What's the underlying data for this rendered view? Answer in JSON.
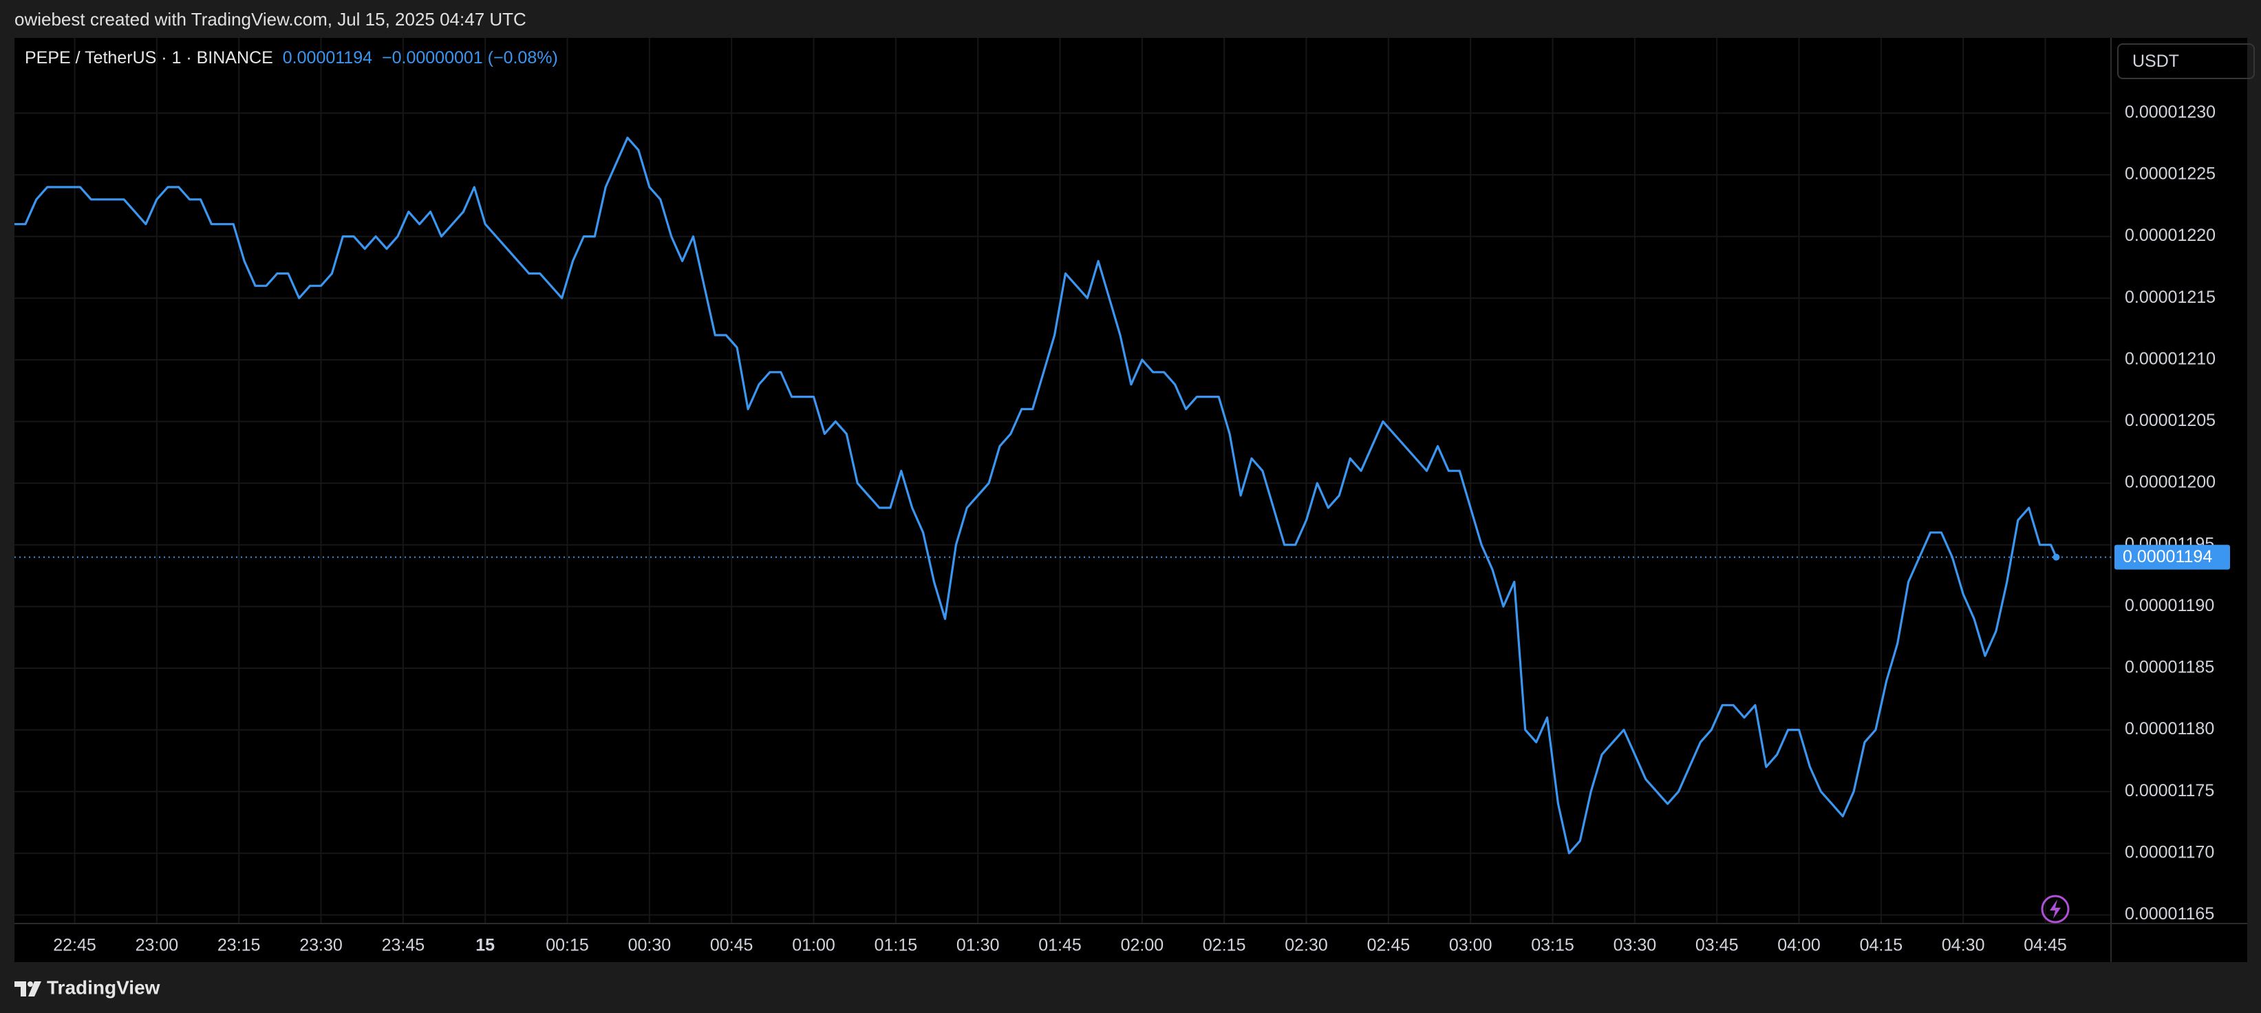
{
  "header": {
    "attribution": "owiebest created with TradingView.com, Jul 15, 2025 04:47 UTC"
  },
  "chart_data": {
    "type": "line",
    "symbol": "PEPE / TetherUS · 1 · BINANCE",
    "last_price": 1.194e-05,
    "change": "−0.00000001 (−0.08%)",
    "currency": "USDT",
    "color": "#3a96f0",
    "grid": true,
    "xlim": [
      "22:34",
      "04:57"
    ],
    "ylim": [
      1.1643e-05,
      1.2361e-05
    ],
    "xticks": [
      "22:45",
      "23:00",
      "23:15",
      "23:30",
      "23:45",
      {
        "value": "00:00",
        "label": "15"
      },
      "00:15",
      "00:30",
      "00:45",
      "01:00",
      "01:15",
      "01:30",
      "01:45",
      "02:00",
      "02:15",
      "02:30",
      "02:45",
      "03:00",
      "03:15",
      "03:30",
      "03:45",
      "04:00",
      "04:15",
      "04:30",
      "04:45"
    ],
    "yticks": [
      1.165e-05,
      {
        "value": 1.17e-05,
        "label": "0.00001170"
      },
      1.175e-05,
      {
        "value": 1.18e-05,
        "label": "0.00001180"
      },
      1.185e-05,
      {
        "value": 1.19e-05,
        "label": "0.00001190"
      },
      1.195e-05,
      {
        "value": 1.2e-05,
        "label": "0.00001200"
      },
      1.205e-05,
      {
        "value": 1.21e-05,
        "label": "0.00001210"
      },
      1.215e-05,
      {
        "value": 1.22e-05,
        "label": "0.00001220"
      },
      1.225e-05,
      {
        "value": 1.23e-05,
        "label": "0.00001230"
      }
    ],
    "x": [
      "22:34",
      "22:36",
      "22:38",
      "22:40",
      "22:42",
      "22:44",
      "22:46",
      "22:48",
      "22:50",
      "22:52",
      "22:54",
      "22:56",
      "22:58",
      "23:00",
      "23:02",
      "23:04",
      "23:06",
      "23:08",
      "23:10",
      "23:12",
      "23:14",
      "23:16",
      "23:18",
      "23:20",
      "23:22",
      "23:24",
      "23:26",
      "23:28",
      "23:30",
      "23:32",
      "23:34",
      "23:36",
      "23:38",
      "23:40",
      "23:42",
      "23:44",
      "23:46",
      "23:48",
      "23:50",
      "23:52",
      "23:54",
      "23:56",
      "23:58",
      "00:00",
      "00:02",
      "00:04",
      "00:06",
      "00:08",
      "00:10",
      "00:12",
      "00:14",
      "00:16",
      "00:18",
      "00:20",
      "00:22",
      "00:24",
      "00:26",
      "00:28",
      "00:30",
      "00:32",
      "00:34",
      "00:36",
      "00:38",
      "00:40",
      "00:42",
      "00:44",
      "00:46",
      "00:48",
      "00:50",
      "00:52",
      "00:54",
      "00:56",
      "00:58",
      "01:00",
      "01:02",
      "01:04",
      "01:06",
      "01:08",
      "01:10",
      "01:12",
      "01:14",
      "01:16",
      "01:18",
      "01:20",
      "01:22",
      "01:24",
      "01:26",
      "01:28",
      "01:30",
      "01:32",
      "01:34",
      "01:36",
      "01:38",
      "01:40",
      "01:42",
      "01:44",
      "01:46",
      "01:48",
      "01:50",
      "01:52",
      "01:54",
      "01:56",
      "01:58",
      "02:00",
      "02:02",
      "02:04",
      "02:06",
      "02:08",
      "02:10",
      "02:12",
      "02:14",
      "02:16",
      "02:18",
      "02:20",
      "02:22",
      "02:24",
      "02:26",
      "02:28",
      "02:30",
      "02:32",
      "02:34",
      "02:36",
      "02:38",
      "02:40",
      "02:42",
      "02:44",
      "02:46",
      "02:48",
      "02:50",
      "02:52",
      "02:54",
      "02:56",
      "02:58",
      "03:00",
      "03:02",
      "03:04",
      "03:06",
      "03:08",
      "03:10",
      "03:12",
      "03:14",
      "03:16",
      "03:18",
      "03:20",
      "03:22",
      "03:24",
      "03:26",
      "03:28",
      "03:30",
      "03:32",
      "03:34",
      "03:36",
      "03:38",
      "03:40",
      "03:42",
      "03:44",
      "03:46",
      "03:48",
      "03:50",
      "03:52",
      "03:54",
      "03:56",
      "03:58",
      "04:00",
      "04:02",
      "04:04",
      "04:06",
      "04:08",
      "04:10",
      "04:12",
      "04:14",
      "04:16",
      "04:18",
      "04:20",
      "04:22",
      "04:24",
      "04:26",
      "04:28",
      "04:30",
      "04:32",
      "04:34",
      "04:36",
      "04:38",
      "04:40",
      "04:42",
      "04:44",
      "04:46",
      "04:47"
    ],
    "values": [
      1.221e-05,
      1.221e-05,
      1.223e-05,
      1.224e-05,
      1.224e-05,
      1.224e-05,
      1.224e-05,
      1.223e-05,
      1.223e-05,
      1.223e-05,
      1.223e-05,
      1.222e-05,
      1.221e-05,
      1.223e-05,
      1.224e-05,
      1.224e-05,
      1.223e-05,
      1.223e-05,
      1.221e-05,
      1.221e-05,
      1.221e-05,
      1.218e-05,
      1.216e-05,
      1.216e-05,
      1.217e-05,
      1.217e-05,
      1.215e-05,
      1.216e-05,
      1.216e-05,
      1.217e-05,
      1.22e-05,
      1.22e-05,
      1.219e-05,
      1.22e-05,
      1.219e-05,
      1.22e-05,
      1.222e-05,
      1.221e-05,
      1.222e-05,
      1.22e-05,
      1.221e-05,
      1.222e-05,
      1.224e-05,
      1.221e-05,
      1.22e-05,
      1.219e-05,
      1.218e-05,
      1.217e-05,
      1.217e-05,
      1.216e-05,
      1.215e-05,
      1.218e-05,
      1.22e-05,
      1.22e-05,
      1.224e-05,
      1.226e-05,
      1.228e-05,
      1.227e-05,
      1.224e-05,
      1.223e-05,
      1.22e-05,
      1.218e-05,
      1.22e-05,
      1.216e-05,
      1.212e-05,
      1.212e-05,
      1.211e-05,
      1.206e-05,
      1.208e-05,
      1.209e-05,
      1.209e-05,
      1.207e-05,
      1.207e-05,
      1.207e-05,
      1.204e-05,
      1.205e-05,
      1.204e-05,
      1.2e-05,
      1.199e-05,
      1.198e-05,
      1.198e-05,
      1.201e-05,
      1.198e-05,
      1.196e-05,
      1.192e-05,
      1.189e-05,
      1.195e-05,
      1.198e-05,
      1.199e-05,
      1.2e-05,
      1.203e-05,
      1.204e-05,
      1.206e-05,
      1.206e-05,
      1.209e-05,
      1.212e-05,
      1.217e-05,
      1.216e-05,
      1.215e-05,
      1.218e-05,
      1.215e-05,
      1.212e-05,
      1.208e-05,
      1.21e-05,
      1.209e-05,
      1.209e-05,
      1.208e-05,
      1.206e-05,
      1.207e-05,
      1.207e-05,
      1.207e-05,
      1.204e-05,
      1.199e-05,
      1.202e-05,
      1.201e-05,
      1.198e-05,
      1.195e-05,
      1.195e-05,
      1.197e-05,
      1.2e-05,
      1.198e-05,
      1.199e-05,
      1.202e-05,
      1.201e-05,
      1.203e-05,
      1.205e-05,
      1.204e-05,
      1.203e-05,
      1.202e-05,
      1.201e-05,
      1.203e-05,
      1.201e-05,
      1.201e-05,
      1.198e-05,
      1.195e-05,
      1.193e-05,
      1.19e-05,
      1.192e-05,
      1.18e-05,
      1.179e-05,
      1.181e-05,
      1.174e-05,
      1.17e-05,
      1.171e-05,
      1.175e-05,
      1.178e-05,
      1.179e-05,
      1.18e-05,
      1.178e-05,
      1.176e-05,
      1.175e-05,
      1.174e-05,
      1.175e-05,
      1.177e-05,
      1.179e-05,
      1.18e-05,
      1.182e-05,
      1.182e-05,
      1.181e-05,
      1.182e-05,
      1.177e-05,
      1.178e-05,
      1.18e-05,
      1.18e-05,
      1.177e-05,
      1.175e-05,
      1.174e-05,
      1.173e-05,
      1.175e-05,
      1.179e-05,
      1.18e-05,
      1.184e-05,
      1.187e-05,
      1.192e-05,
      1.194e-05,
      1.196e-05,
      1.196e-05,
      1.194e-05,
      1.191e-05,
      1.189e-05,
      1.186e-05,
      1.188e-05,
      1.192e-05,
      1.197e-05,
      1.198e-05,
      1.195e-05,
      1.195e-05,
      1.194e-05
    ]
  },
  "footer": {
    "brand": "TradingView"
  }
}
